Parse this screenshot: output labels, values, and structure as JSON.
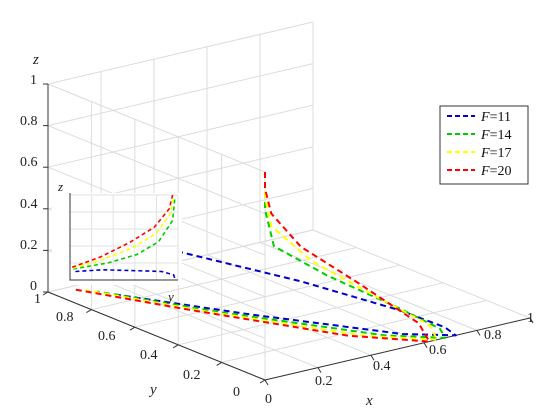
{
  "chart_data": {
    "type": "line",
    "projection": "3d",
    "xlabel": "x",
    "ylabel": "y",
    "zlabel": "z",
    "xlim": [
      0,
      1
    ],
    "ylim": [
      0,
      1
    ],
    "zlim": [
      0,
      1
    ],
    "x_ticks": [
      "0",
      "0.2",
      "0.4",
      "0.6",
      "0.8",
      "1"
    ],
    "y_ticks": [
      "0",
      "0.2",
      "0.4",
      "0.6",
      "0.8",
      "1"
    ],
    "z_ticks": [
      "0",
      "0.2",
      "0.4",
      "0.6",
      "0.8",
      "1"
    ],
    "grid": true,
    "legend_position": "right",
    "line_style": "dashed",
    "series": [
      {
        "name": "F=11",
        "F_label": "11",
        "color": "#0000cc",
        "points": [
          [
            0.0,
            0.45,
            0.44
          ],
          [
            0.3,
            0.2,
            0.3
          ],
          [
            0.55,
            0.05,
            0.15
          ],
          [
            0.68,
            0.0,
            0.05
          ],
          [
            0.72,
            0.0,
            0.0
          ],
          [
            0.6,
            0.1,
            0.0
          ],
          [
            0.35,
            0.5,
            0.0
          ],
          [
            0.14,
            0.88,
            0.0
          ]
        ]
      },
      {
        "name": "F=14",
        "F_label": "14",
        "color": "#00cc00",
        "points": [
          [
            0.0,
            0.0,
            1.0
          ],
          [
            0.0,
            0.0,
            0.82
          ],
          [
            0.05,
            0.02,
            0.62
          ],
          [
            0.25,
            0.02,
            0.42
          ],
          [
            0.5,
            0.0,
            0.2
          ],
          [
            0.66,
            0.0,
            0.05
          ],
          [
            0.68,
            0.0,
            0.0
          ],
          [
            0.55,
            0.12,
            0.0
          ],
          [
            0.3,
            0.55,
            0.0
          ],
          [
            0.12,
            0.92,
            0.0
          ]
        ]
      },
      {
        "name": "F=17",
        "F_label": "17",
        "color": "#ffff00",
        "points": [
          [
            0.0,
            0.0,
            1.0
          ],
          [
            0.0,
            0.0,
            0.88
          ],
          [
            0.04,
            0.02,
            0.72
          ],
          [
            0.2,
            0.03,
            0.5
          ],
          [
            0.42,
            0.03,
            0.28
          ],
          [
            0.62,
            0.0,
            0.08
          ],
          [
            0.65,
            0.0,
            0.0
          ],
          [
            0.5,
            0.15,
            0.0
          ],
          [
            0.26,
            0.6,
            0.0
          ],
          [
            0.1,
            0.95,
            0.0
          ]
        ]
      },
      {
        "name": "F=20",
        "F_label": "20",
        "color": "#ff0000",
        "points": [
          [
            0.0,
            0.0,
            1.0
          ],
          [
            0.0,
            0.0,
            0.92
          ],
          [
            0.04,
            0.02,
            0.78
          ],
          [
            0.16,
            0.03,
            0.58
          ],
          [
            0.38,
            0.04,
            0.34
          ],
          [
            0.58,
            0.0,
            0.1
          ],
          [
            0.62,
            0.0,
            0.0
          ],
          [
            0.46,
            0.18,
            0.0
          ],
          [
            0.23,
            0.64,
            0.0
          ],
          [
            0.08,
            0.97,
            0.0
          ]
        ]
      }
    ]
  },
  "inset": {
    "zlabel": "z",
    "ylabel": "y",
    "view": "projection onto the y-z plane"
  }
}
